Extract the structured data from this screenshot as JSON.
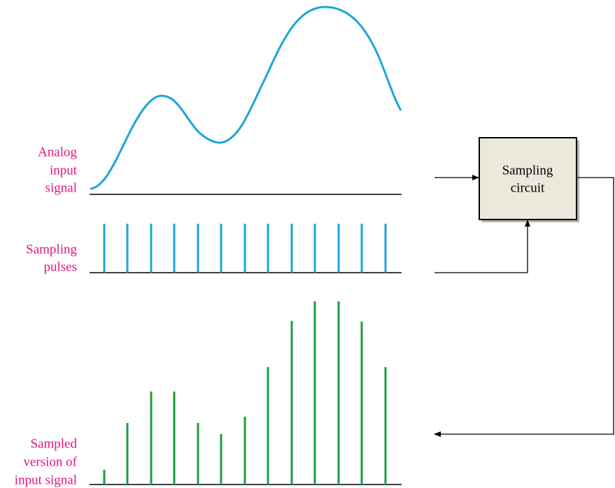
{
  "labels": {
    "analog": [
      "Analog",
      "input",
      "signal"
    ],
    "pulses": [
      "Sampling",
      "pulses"
    ],
    "sampled": [
      "Sampled",
      "version of",
      "input signal"
    ]
  },
  "block": {
    "label": [
      "Sampling",
      "circuit"
    ]
  }
}
